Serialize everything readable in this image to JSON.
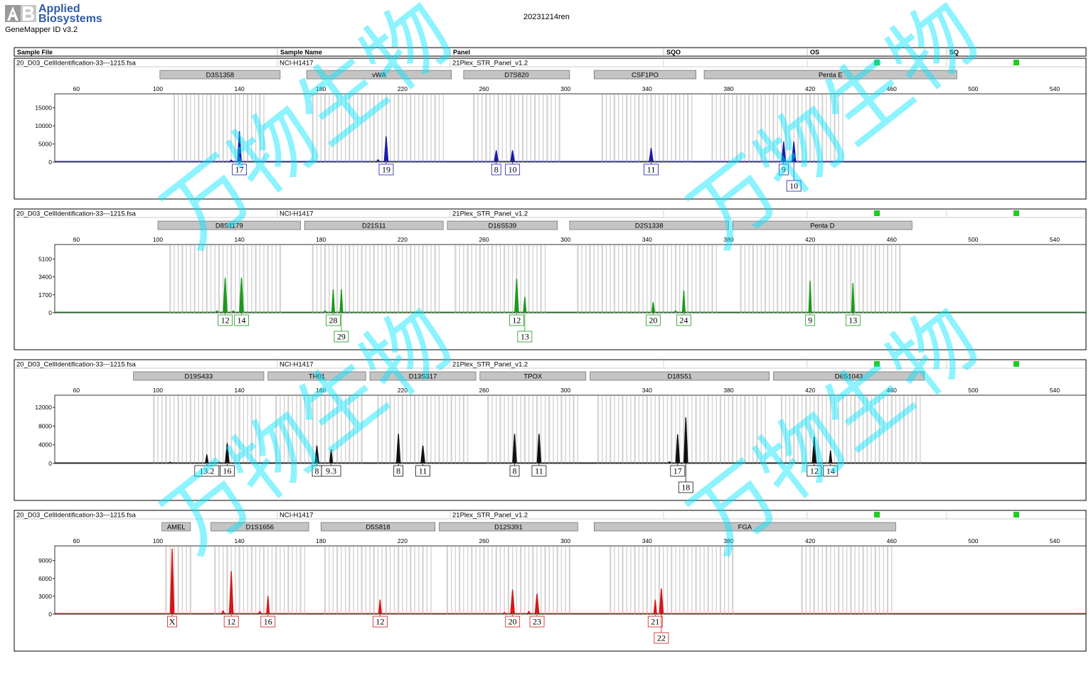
{
  "app": {
    "brand_line1": "Applied",
    "brand_line2": "Biosystems",
    "software": "GeneMapper ID v3.2",
    "run_name": "20231214ren"
  },
  "table_header": {
    "columns": [
      "Sample File",
      "Sample Name",
      "Panel",
      "SQO",
      "OS",
      "SQ"
    ]
  },
  "colors": {
    "blue": "#1a1aa8",
    "green": "#1a9a1a",
    "black": "#111111",
    "red": "#d01818",
    "flag": "#22cc22",
    "bin": "#d3d3d3",
    "watermark": "#00e5ff"
  },
  "chart_data": [
    {
      "type": "line",
      "sample_file": "20_D03_CellIdentification-33---1215.fsa",
      "sample_name": "NCI-H1417",
      "panel": "21Plex_STR_Panel_v1.2",
      "color": "blue",
      "x_ticks": [
        60,
        100,
        140,
        180,
        220,
        260,
        300,
        340,
        380,
        420,
        460,
        500,
        540
      ],
      "y_ticks": [
        0,
        5000,
        10000,
        15000
      ],
      "ylim": [
        0,
        18000
      ],
      "loci": [
        {
          "name": "D3S1358",
          "start": 101,
          "end": 160
        },
        {
          "name": "vWA",
          "start": 173,
          "end": 244
        },
        {
          "name": "D7S820",
          "start": 250,
          "end": 302
        },
        {
          "name": "CSF1PO",
          "start": 314,
          "end": 364
        },
        {
          "name": "Penta E",
          "start": 368,
          "end": 492
        }
      ],
      "bins": [
        [
          108,
          152
        ],
        [
          176,
          240
        ],
        [
          255,
          298
        ],
        [
          318,
          362
        ],
        [
          372,
          436
        ]
      ],
      "peaks": [
        {
          "x": 140,
          "h": 8400,
          "label": "17",
          "row": 0
        },
        {
          "x": 136,
          "h": 600,
          "label": "",
          "row": 0
        },
        {
          "x": 212,
          "h": 7000,
          "label": "19",
          "row": 0
        },
        {
          "x": 208,
          "h": 700,
          "label": "",
          "row": 0
        },
        {
          "x": 266,
          "h": 3200,
          "label": "8",
          "row": 0
        },
        {
          "x": 274,
          "h": 3200,
          "label": "10",
          "row": 0
        },
        {
          "x": 342,
          "h": 3800,
          "label": "11",
          "row": 0
        },
        {
          "x": 407,
          "h": 5600,
          "label": "9",
          "row": 0
        },
        {
          "x": 412,
          "h": 5600,
          "label": "10",
          "row": 1
        }
      ]
    },
    {
      "type": "line",
      "sample_file": "20_D03_CellIdentification-33---1215.fsa",
      "sample_name": "NCI-H1417",
      "panel": "21Plex_STR_Panel_v1.2",
      "color": "green",
      "x_ticks": [
        60,
        100,
        140,
        180,
        220,
        260,
        300,
        340,
        380,
        420,
        460,
        500,
        540
      ],
      "y_ticks": [
        0,
        1700,
        3400,
        5100
      ],
      "ylim": [
        0,
        6200
      ],
      "loci": [
        {
          "name": "D8S1179",
          "start": 100,
          "end": 170
        },
        {
          "name": "D21S11",
          "start": 172,
          "end": 240
        },
        {
          "name": "D16S539",
          "start": 242,
          "end": 296
        },
        {
          "name": "D2S1338",
          "start": 302,
          "end": 380
        },
        {
          "name": "Penta D",
          "start": 382,
          "end": 470
        }
      ],
      "bins": [
        [
          106,
          160
        ],
        [
          176,
          238
        ],
        [
          246,
          290
        ],
        [
          306,
          374
        ],
        [
          386,
          464
        ]
      ],
      "peaks": [
        {
          "x": 133,
          "h": 3300,
          "label": "12",
          "row": 0
        },
        {
          "x": 141,
          "h": 3300,
          "label": "14",
          "row": 0
        },
        {
          "x": 129,
          "h": 200,
          "label": "",
          "row": 0
        },
        {
          "x": 137,
          "h": 200,
          "label": "",
          "row": 0
        },
        {
          "x": 186,
          "h": 2200,
          "label": "28",
          "row": 0
        },
        {
          "x": 190,
          "h": 2200,
          "label": "29",
          "row": 1
        },
        {
          "x": 182,
          "h": 200,
          "label": "",
          "row": 0
        },
        {
          "x": 276,
          "h": 3200,
          "label": "12",
          "row": 0
        },
        {
          "x": 280,
          "h": 1500,
          "label": "13",
          "row": 1
        },
        {
          "x": 343,
          "h": 1000,
          "label": "20",
          "row": 0
        },
        {
          "x": 358,
          "h": 2100,
          "label": "24",
          "row": 0
        },
        {
          "x": 354,
          "h": 200,
          "label": "",
          "row": 0
        },
        {
          "x": 420,
          "h": 3000,
          "label": "9",
          "row": 0
        },
        {
          "x": 441,
          "h": 2800,
          "label": "13",
          "row": 0
        }
      ]
    },
    {
      "type": "line",
      "sample_file": "20_D03_CellIdentification-33---1215.fsa",
      "sample_name": "NCI-H1417",
      "panel": "21Plex_STR_Panel_v1.2",
      "color": "black",
      "x_ticks": [
        60,
        100,
        140,
        180,
        220,
        260,
        300,
        340,
        380,
        420,
        460,
        500,
        540
      ],
      "y_ticks": [
        0,
        4000,
        8000,
        12000
      ],
      "ylim": [
        0,
        14000
      ],
      "loci": [
        {
          "name": "D19S433",
          "start": 88,
          "end": 152
        },
        {
          "name": "TH01",
          "start": 154,
          "end": 202
        },
        {
          "name": "D13S317",
          "start": 204,
          "end": 256
        },
        {
          "name": "TPOX",
          "start": 258,
          "end": 310
        },
        {
          "name": "D18S51",
          "start": 312,
          "end": 400
        },
        {
          "name": "D6S1043",
          "start": 402,
          "end": 476
        }
      ],
      "bins": [
        [
          98,
          150
        ],
        [
          158,
          200
        ],
        [
          208,
          252
        ],
        [
          262,
          306
        ],
        [
          316,
          398
        ],
        [
          406,
          474
        ]
      ],
      "peaks": [
        {
          "x": 124,
          "h": 1900,
          "label": "13.2",
          "row": 0
        },
        {
          "x": 134,
          "h": 4300,
          "label": "16",
          "row": 0
        },
        {
          "x": 130,
          "h": 300,
          "label": "",
          "row": 0
        },
        {
          "x": 106,
          "h": 300,
          "label": "",
          "row": 0
        },
        {
          "x": 178,
          "h": 3800,
          "label": "8",
          "row": 0
        },
        {
          "x": 185,
          "h": 3000,
          "label": "9.3",
          "row": 0
        },
        {
          "x": 218,
          "h": 6300,
          "label": "8",
          "row": 0
        },
        {
          "x": 230,
          "h": 3800,
          "label": "11",
          "row": 0
        },
        {
          "x": 275,
          "h": 6300,
          "label": "8",
          "row": 0
        },
        {
          "x": 287,
          "h": 6300,
          "label": "11",
          "row": 0
        },
        {
          "x": 355,
          "h": 6200,
          "label": "17",
          "row": 0
        },
        {
          "x": 359,
          "h": 9800,
          "label": "18",
          "row": 1
        },
        {
          "x": 351,
          "h": 400,
          "label": "",
          "row": 0
        },
        {
          "x": 422,
          "h": 5700,
          "label": "12",
          "row": 0
        },
        {
          "x": 430,
          "h": 2700,
          "label": "14",
          "row": 0
        }
      ]
    },
    {
      "type": "line",
      "sample_file": "20_D03_CellIdentification-33---1215.fsa",
      "sample_name": "NCI-H1417",
      "panel": "21Plex_STR_Panel_v1.2",
      "color": "red",
      "x_ticks": [
        60,
        100,
        140,
        180,
        220,
        260,
        300,
        340,
        380,
        420,
        460,
        500,
        540
      ],
      "y_ticks": [
        0,
        3000,
        6000,
        9000
      ],
      "ylim": [
        0,
        11000
      ],
      "loci": [
        {
          "name": "AMEL",
          "start": 102,
          "end": 116
        },
        {
          "name": "D1S1656",
          "start": 126,
          "end": 174
        },
        {
          "name": "D5S818",
          "start": 180,
          "end": 236
        },
        {
          "name": "D12S391",
          "start": 238,
          "end": 306
        },
        {
          "name": "FGA",
          "start": 314,
          "end": 462
        }
      ],
      "bins": [
        [
          104,
          116
        ],
        [
          128,
          172
        ],
        [
          182,
          234
        ],
        [
          242,
          302
        ],
        [
          322,
          382
        ],
        [
          416,
          460
        ]
      ],
      "peaks": [
        {
          "x": 107,
          "h": 11000,
          "label": "X",
          "row": 0
        },
        {
          "x": 136,
          "h": 7200,
          "label": "12",
          "row": 0
        },
        {
          "x": 132,
          "h": 600,
          "label": "",
          "row": 0
        },
        {
          "x": 154,
          "h": 3000,
          "label": "16",
          "row": 0
        },
        {
          "x": 150,
          "h": 500,
          "label": "",
          "row": 0
        },
        {
          "x": 209,
          "h": 2400,
          "label": "12",
          "row": 0
        },
        {
          "x": 274,
          "h": 4100,
          "label": "20",
          "row": 0
        },
        {
          "x": 286,
          "h": 3400,
          "label": "23",
          "row": 0
        },
        {
          "x": 270,
          "h": 300,
          "label": "",
          "row": 0
        },
        {
          "x": 282,
          "h": 500,
          "label": "",
          "row": 0
        },
        {
          "x": 344,
          "h": 2400,
          "label": "21",
          "row": 0
        },
        {
          "x": 347,
          "h": 4300,
          "label": "22",
          "row": 1
        }
      ]
    }
  ],
  "watermark": {
    "text": "万物生物"
  }
}
